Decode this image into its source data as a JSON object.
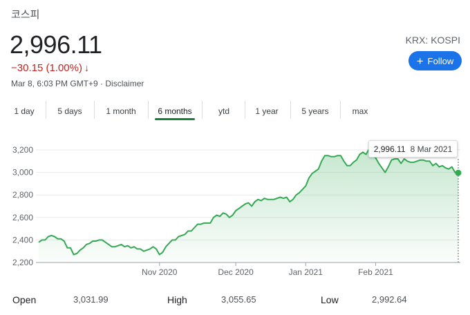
{
  "header": {
    "title": "코스피",
    "price": "2,996.11",
    "change": "−30.15 (1.00%)",
    "change_arrow": "↓",
    "meta": "Mar 8, 6:03 PM GMT+9 · Disclaimer",
    "exchange": "KRX: KOSPI",
    "follow_label": "Follow",
    "follow_icon": "plus-icon"
  },
  "tabs": [
    {
      "label": "1 day",
      "active": false
    },
    {
      "label": "5 days",
      "active": false
    },
    {
      "label": "1 month",
      "active": false
    },
    {
      "label": "6 months",
      "active": true
    },
    {
      "label": "ytd",
      "active": false
    },
    {
      "label": "1 year",
      "active": false
    },
    {
      "label": "5 years",
      "active": false
    },
    {
      "label": "max",
      "active": false
    }
  ],
  "tooltip": {
    "value": "2,996.11",
    "date": "8 Mar 2021"
  },
  "stats": [
    {
      "label": "Open",
      "value": "3,031.99"
    },
    {
      "label": "High",
      "value": "3,055.65"
    },
    {
      "label": "Low",
      "value": "2,992.64"
    }
  ],
  "colors": {
    "accent": "#1a73e8",
    "line": "#34a853",
    "down": "#c5221f"
  },
  "chart_data": {
    "type": "area",
    "y_ticks": [
      "3,200",
      "3,000",
      "2,800",
      "2,600",
      "2,400",
      "2,200"
    ],
    "ylim": [
      2200,
      3200
    ],
    "x_labels": [
      {
        "label": "Nov 2020",
        "index": 38
      },
      {
        "label": "Dec 2020",
        "index": 62
      },
      {
        "label": "Jan 2021",
        "index": 84
      },
      {
        "label": "Feb 2021",
        "index": 106
      }
    ],
    "values": [
      2380,
      2400,
      2400,
      2430,
      2440,
      2430,
      2410,
      2410,
      2390,
      2330,
      2330,
      2270,
      2280,
      2310,
      2330,
      2360,
      2370,
      2390,
      2390,
      2400,
      2400,
      2380,
      2360,
      2340,
      2340,
      2350,
      2360,
      2340,
      2350,
      2330,
      2340,
      2320,
      2320,
      2300,
      2310,
      2320,
      2340,
      2320,
      2270,
      2290,
      2340,
      2370,
      2400,
      2400,
      2430,
      2440,
      2450,
      2480,
      2480,
      2510,
      2540,
      2540,
      2550,
      2550,
      2550,
      2600,
      2620,
      2610,
      2640,
      2630,
      2600,
      2620,
      2660,
      2680,
      2700,
      2720,
      2730,
      2700,
      2740,
      2760,
      2750,
      2770,
      2760,
      2760,
      2760,
      2770,
      2780,
      2770,
      2780,
      2740,
      2760,
      2800,
      2820,
      2850,
      2880,
      2950,
      2990,
      3010,
      3030,
      3100,
      3150,
      3150,
      3140,
      3140,
      3150,
      3150,
      3100,
      3060,
      3060,
      3090,
      3110,
      3160,
      3180,
      3160,
      3210,
      3150,
      3130,
      3080,
      3040,
      3000,
      3050,
      3110,
      3120,
      3120,
      3080,
      3120,
      3100,
      3090,
      3090,
      3100,
      3110,
      3110,
      3100,
      3100,
      3060,
      3080,
      3050,
      3060,
      3040,
      3030,
      3050,
      3000,
      2996.11
    ]
  }
}
